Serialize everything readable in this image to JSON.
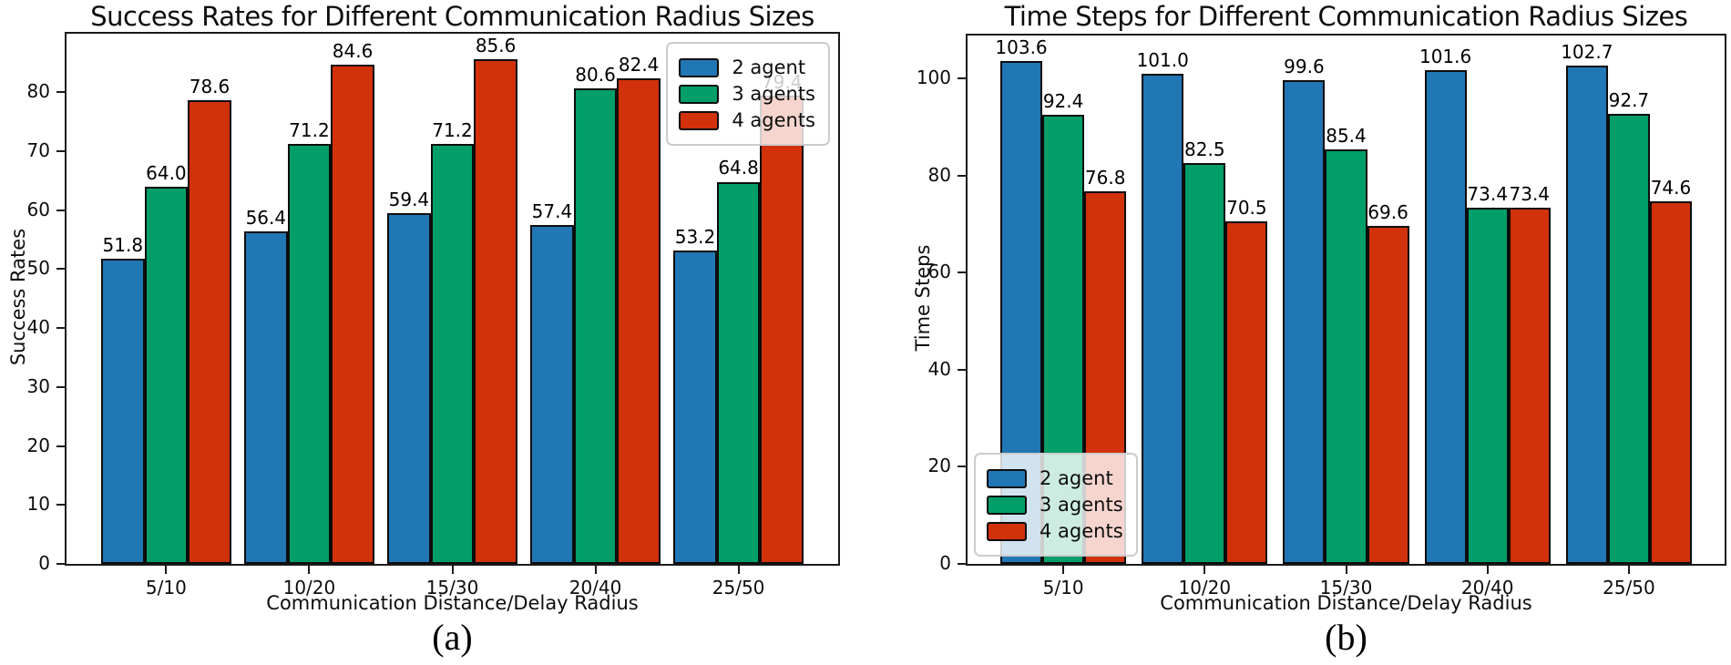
{
  "chart_data": [
    {
      "type": "bar",
      "title": "Success Rates for Different Communication Radius Sizes",
      "xlabel": "Communication Distance/Delay Radius",
      "ylabel": "Success Rates",
      "caption": "(a)",
      "categories": [
        "5/10",
        "10/20",
        "15/30",
        "20/40",
        "25/50"
      ],
      "series": [
        {
          "name": "2 agent",
          "color": "#2176b4",
          "values": [
            51.8,
            56.4,
            59.4,
            57.4,
            53.2
          ]
        },
        {
          "name": "3 agents",
          "color": "#029e69",
          "values": [
            64.0,
            71.2,
            71.2,
            80.6,
            64.8
          ]
        },
        {
          "name": "4 agents",
          "color": "#d1310b",
          "values": [
            78.6,
            84.6,
            85.6,
            82.4,
            79.4
          ]
        }
      ],
      "ylim": [
        0,
        89.9
      ],
      "yticks": [
        0,
        10,
        20,
        30,
        40,
        50,
        60,
        70,
        80
      ],
      "legend_position": "upper-right",
      "bar_labels": true,
      "grid": false
    },
    {
      "type": "bar",
      "title": "Time Steps for Different Communication Radius Sizes",
      "xlabel": "Communication Distance/Delay Radius",
      "ylabel": "Time Steps",
      "caption": "(b)",
      "categories": [
        "5/10",
        "10/20",
        "15/30",
        "20/40",
        "25/50"
      ],
      "series": [
        {
          "name": "2 agent",
          "color": "#2176b4",
          "values": [
            103.6,
            101.0,
            99.6,
            101.6,
            102.7
          ]
        },
        {
          "name": "3 agents",
          "color": "#029e69",
          "values": [
            92.4,
            82.5,
            85.4,
            73.4,
            92.7
          ]
        },
        {
          "name": "4 agents",
          "color": "#d1310b",
          "values": [
            76.8,
            70.5,
            69.6,
            73.4,
            74.6
          ]
        }
      ],
      "ylim": [
        0,
        108.8
      ],
      "yticks": [
        0,
        20,
        40,
        60,
        80,
        100
      ],
      "legend_position": "lower-left",
      "bar_labels": true,
      "grid": false
    }
  ]
}
